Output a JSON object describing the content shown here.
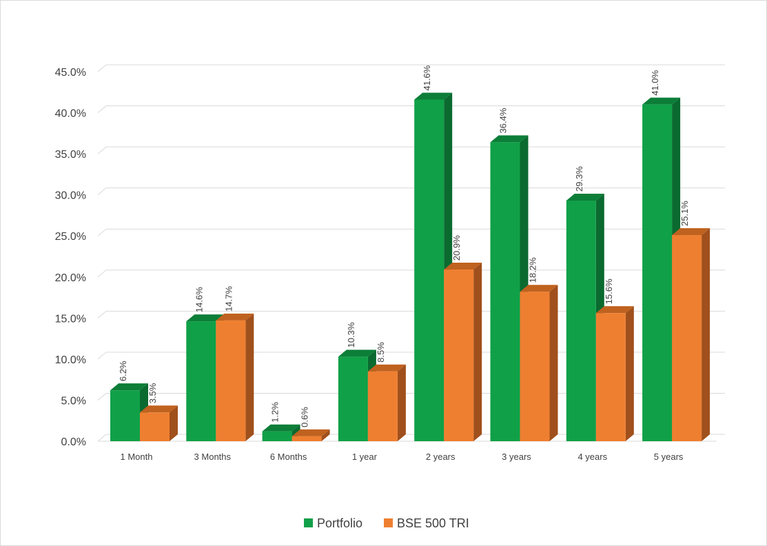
{
  "chart_data": {
    "type": "bar",
    "style": "3d-clustered-column",
    "categories": [
      "1 Month",
      "3 Months",
      "6 Months",
      "1 year",
      "2 years",
      "3 years",
      "4 years",
      "5 years"
    ],
    "series": [
      {
        "name": "Portfolio",
        "values": [
          6.2,
          14.6,
          1.2,
          10.3,
          41.6,
          36.4,
          29.3,
          41.0
        ],
        "labels": [
          "6.2%",
          "14.6%",
          "1.2%",
          "10.3%",
          "41.6%",
          "36.4%",
          "29.3%",
          "41.0%"
        ],
        "color": "#10a048",
        "side_color": "#0a6a30",
        "top_color": "#0c7e38"
      },
      {
        "name": "BSE 500 TRI",
        "values": [
          3.5,
          14.7,
          0.6,
          8.5,
          20.9,
          18.2,
          15.6,
          25.1
        ],
        "labels": [
          "3.5%",
          "14.7%",
          "0.6%",
          "8.5%",
          "20.9%",
          "18.2%",
          "15.6%",
          "25.1%"
        ],
        "color": "#ef7f30",
        "side_color": "#a0501c",
        "top_color": "#c0621f"
      }
    ],
    "y_ticks": [
      "0.0%",
      "5.0%",
      "10.0%",
      "15.0%",
      "20.0%",
      "25.0%",
      "30.0%",
      "35.0%",
      "40.0%",
      "45.0%"
    ],
    "ylim": [
      0,
      45
    ],
    "grid": true,
    "legend_position": "bottom"
  }
}
